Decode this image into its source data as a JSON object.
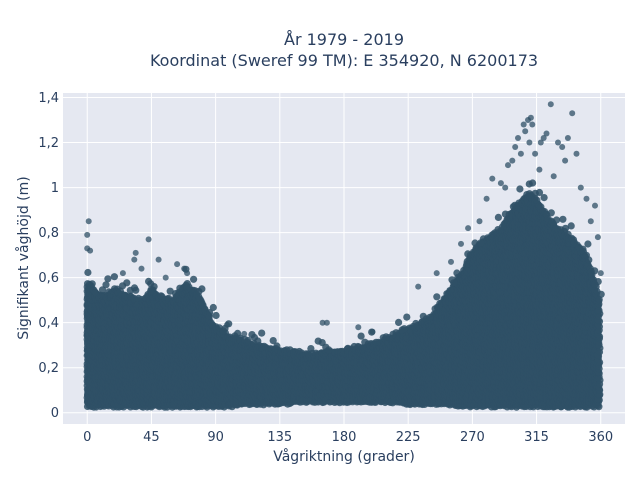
{
  "chart_data": {
    "type": "scatter",
    "title_lines": [
      "År 1979 - 2019",
      "Koordinat (Sweref 99 TM): E 354920, N 6200173"
    ],
    "xlabel": "Vågriktning (grader)",
    "ylabel": "Signifikant våghöjd (m)",
    "xlim": [
      -17,
      377
    ],
    "ylim": [
      -0.05,
      1.42
    ],
    "x_ticks": [
      0,
      45,
      90,
      135,
      180,
      225,
      270,
      315,
      360
    ],
    "x_tick_labels": [
      "0",
      "45",
      "90",
      "135",
      "180",
      "225",
      "270",
      "315",
      "360"
    ],
    "y_ticks": [
      0,
      0.2,
      0.4,
      0.6,
      0.8,
      1,
      1.2,
      1.4
    ],
    "y_tick_labels": [
      "0",
      "0,2",
      "0,4",
      "0,6",
      "0,8",
      "1",
      "1,2",
      "1,4"
    ],
    "grid": true,
    "marker_color": "#2f5066",
    "background_color": "#e5e8f1",
    "envelope": {
      "x": [
        0,
        5,
        10,
        20,
        30,
        40,
        45,
        50,
        60,
        70,
        80,
        90,
        100,
        110,
        120,
        135,
        150,
        165,
        180,
        195,
        210,
        225,
        240,
        255,
        265,
        270,
        280,
        290,
        300,
        305,
        310,
        315,
        320,
        330,
        340,
        350,
        355,
        360
      ],
      "lower": [
        0.03,
        0.03,
        0.03,
        0.03,
        0.03,
        0.03,
        0.03,
        0.03,
        0.03,
        0.03,
        0.03,
        0.03,
        0.03,
        0.04,
        0.04,
        0.04,
        0.05,
        0.05,
        0.05,
        0.05,
        0.05,
        0.04,
        0.04,
        0.04,
        0.03,
        0.03,
        0.03,
        0.03,
        0.03,
        0.03,
        0.03,
        0.03,
        0.03,
        0.03,
        0.03,
        0.03,
        0.03,
        0.03
      ],
      "upper": [
        0.58,
        0.55,
        0.52,
        0.55,
        0.52,
        0.5,
        0.56,
        0.52,
        0.5,
        0.58,
        0.5,
        0.38,
        0.34,
        0.32,
        0.3,
        0.28,
        0.27,
        0.27,
        0.28,
        0.3,
        0.33,
        0.38,
        0.42,
        0.55,
        0.65,
        0.72,
        0.78,
        0.82,
        0.92,
        0.95,
        0.98,
        0.95,
        0.9,
        0.82,
        0.78,
        0.7,
        0.6,
        0.48
      ]
    },
    "outliers": [
      {
        "x": 1,
        "y": 0.85
      },
      {
        "x": 0,
        "y": 0.79
      },
      {
        "x": 0,
        "y": 0.73
      },
      {
        "x": 2,
        "y": 0.72
      },
      {
        "x": 34,
        "y": 0.71
      },
      {
        "x": 33,
        "y": 0.68
      },
      {
        "x": 43,
        "y": 0.77
      },
      {
        "x": 50,
        "y": 0.68
      },
      {
        "x": 63,
        "y": 0.66
      },
      {
        "x": 68,
        "y": 0.64
      },
      {
        "x": 70,
        "y": 0.62
      },
      {
        "x": 38,
        "y": 0.64
      },
      {
        "x": 55,
        "y": 0.6
      },
      {
        "x": 25,
        "y": 0.62
      },
      {
        "x": 98,
        "y": 0.39
      },
      {
        "x": 110,
        "y": 0.35
      },
      {
        "x": 165,
        "y": 0.4
      },
      {
        "x": 168,
        "y": 0.4
      },
      {
        "x": 190,
        "y": 0.38
      },
      {
        "x": 200,
        "y": 0.36
      },
      {
        "x": 232,
        "y": 0.56
      },
      {
        "x": 245,
        "y": 0.62
      },
      {
        "x": 255,
        "y": 0.67
      },
      {
        "x": 262,
        "y": 0.75
      },
      {
        "x": 267,
        "y": 0.82
      },
      {
        "x": 275,
        "y": 0.85
      },
      {
        "x": 280,
        "y": 0.95
      },
      {
        "x": 284,
        "y": 1.04
      },
      {
        "x": 290,
        "y": 1.02
      },
      {
        "x": 295,
        "y": 1.1
      },
      {
        "x": 298,
        "y": 1.12
      },
      {
        "x": 300,
        "y": 1.18
      },
      {
        "x": 302,
        "y": 1.22
      },
      {
        "x": 306,
        "y": 1.28
      },
      {
        "x": 307,
        "y": 1.25
      },
      {
        "x": 309,
        "y": 1.3
      },
      {
        "x": 311,
        "y": 1.31
      },
      {
        "x": 312,
        "y": 1.28
      },
      {
        "x": 310,
        "y": 1.2
      },
      {
        "x": 314,
        "y": 1.15
      },
      {
        "x": 317,
        "y": 1.08
      },
      {
        "x": 320,
        "y": 1.22
      },
      {
        "x": 322,
        "y": 1.24
      },
      {
        "x": 325,
        "y": 1.37
      },
      {
        "x": 330,
        "y": 1.2
      },
      {
        "x": 333,
        "y": 1.18
      },
      {
        "x": 335,
        "y": 1.12
      },
      {
        "x": 337,
        "y": 1.22
      },
      {
        "x": 340,
        "y": 1.33
      },
      {
        "x": 343,
        "y": 1.15
      },
      {
        "x": 346,
        "y": 1.0
      },
      {
        "x": 350,
        "y": 0.95
      },
      {
        "x": 353,
        "y": 0.85
      },
      {
        "x": 356,
        "y": 0.92
      },
      {
        "x": 358,
        "y": 0.78
      },
      {
        "x": 360,
        "y": 0.62
      },
      {
        "x": 327,
        "y": 1.05
      },
      {
        "x": 304,
        "y": 1.15
      },
      {
        "x": 293,
        "y": 1.0
      },
      {
        "x": 318,
        "y": 1.2
      }
    ]
  }
}
